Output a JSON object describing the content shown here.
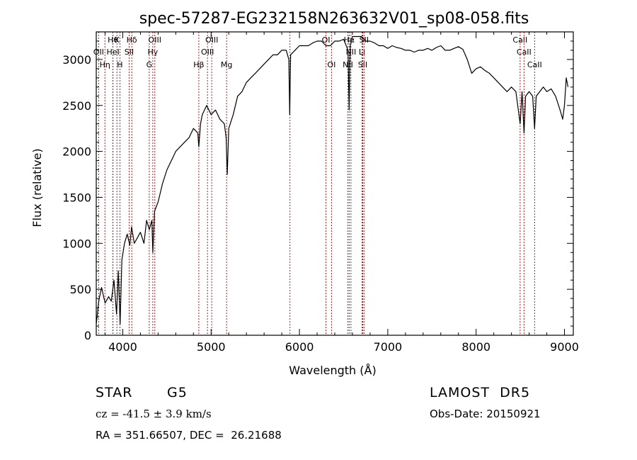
{
  "chart_data": {
    "type": "line",
    "title": "spec-57287-EG232158N263632V01_sp08-058.fits",
    "xlabel": "Wavelength (Å)",
    "ylabel": "Flux (relative)",
    "xlim": [
      3700,
      9100
    ],
    "ylim": [
      0,
      3300
    ],
    "xticks": [
      4000,
      5000,
      6000,
      7000,
      8000,
      9000
    ],
    "yticks": [
      0,
      500,
      1000,
      1500,
      2000,
      2500,
      3000
    ],
    "grid": false,
    "series": [
      {
        "color": "#000000",
        "points": [
          [
            3700,
            120
          ],
          [
            3730,
            380
          ],
          [
            3760,
            520
          ],
          [
            3800,
            350
          ],
          [
            3840,
            420
          ],
          [
            3870,
            370
          ],
          [
            3900,
            600
          ],
          [
            3930,
            230
          ],
          [
            3950,
            700
          ],
          [
            3970,
            120
          ],
          [
            3990,
            820
          ],
          [
            4020,
            1000
          ],
          [
            4050,
            1100
          ],
          [
            4080,
            980
          ],
          [
            4100,
            1180
          ],
          [
            4130,
            1000
          ],
          [
            4160,
            1050
          ],
          [
            4200,
            1120
          ],
          [
            4240,
            1000
          ],
          [
            4270,
            1250
          ],
          [
            4300,
            1150
          ],
          [
            4330,
            1250
          ],
          [
            4340,
            900
          ],
          [
            4360,
            1350
          ],
          [
            4400,
            1450
          ],
          [
            4450,
            1650
          ],
          [
            4500,
            1800
          ],
          [
            4550,
            1900
          ],
          [
            4600,
            2000
          ],
          [
            4650,
            2050
          ],
          [
            4700,
            2100
          ],
          [
            4750,
            2150
          ],
          [
            4800,
            2250
          ],
          [
            4850,
            2200
          ],
          [
            4861,
            2050
          ],
          [
            4880,
            2300
          ],
          [
            4900,
            2400
          ],
          [
            4950,
            2500
          ],
          [
            5000,
            2400
          ],
          [
            5050,
            2450
          ],
          [
            5100,
            2350
          ],
          [
            5150,
            2300
          ],
          [
            5170,
            2150
          ],
          [
            5183,
            1750
          ],
          [
            5200,
            2250
          ],
          [
            5250,
            2400
          ],
          [
            5300,
            2600
          ],
          [
            5350,
            2650
          ],
          [
            5400,
            2750
          ],
          [
            5450,
            2800
          ],
          [
            5500,
            2850
          ],
          [
            5550,
            2900
          ],
          [
            5600,
            2950
          ],
          [
            5650,
            3000
          ],
          [
            5700,
            3050
          ],
          [
            5750,
            3050
          ],
          [
            5800,
            3100
          ],
          [
            5850,
            3100
          ],
          [
            5880,
            3000
          ],
          [
            5890,
            2400
          ],
          [
            5900,
            3050
          ],
          [
            5950,
            3100
          ],
          [
            6000,
            3150
          ],
          [
            6050,
            3150
          ],
          [
            6100,
            3150
          ],
          [
            6150,
            3180
          ],
          [
            6200,
            3200
          ],
          [
            6250,
            3200
          ],
          [
            6300,
            3150
          ],
          [
            6350,
            3150
          ],
          [
            6400,
            3200
          ],
          [
            6450,
            3200
          ],
          [
            6500,
            3220
          ],
          [
            6550,
            3100
          ],
          [
            6563,
            2450
          ],
          [
            6575,
            3150
          ],
          [
            6600,
            3250
          ],
          [
            6650,
            3250
          ],
          [
            6700,
            3250
          ],
          [
            6750,
            3200
          ],
          [
            6800,
            3200
          ],
          [
            6850,
            3180
          ],
          [
            6900,
            3150
          ],
          [
            6950,
            3150
          ],
          [
            7000,
            3120
          ],
          [
            7050,
            3150
          ],
          [
            7100,
            3130
          ],
          [
            7150,
            3120
          ],
          [
            7200,
            3100
          ],
          [
            7250,
            3100
          ],
          [
            7300,
            3080
          ],
          [
            7350,
            3100
          ],
          [
            7400,
            3100
          ],
          [
            7450,
            3120
          ],
          [
            7500,
            3100
          ],
          [
            7550,
            3130
          ],
          [
            7600,
            3150
          ],
          [
            7650,
            3100
          ],
          [
            7700,
            3100
          ],
          [
            7750,
            3120
          ],
          [
            7800,
            3140
          ],
          [
            7850,
            3110
          ],
          [
            7900,
            3000
          ],
          [
            7950,
            2850
          ],
          [
            8000,
            2900
          ],
          [
            8050,
            2920
          ],
          [
            8100,
            2880
          ],
          [
            8150,
            2850
          ],
          [
            8200,
            2800
          ],
          [
            8250,
            2750
          ],
          [
            8300,
            2700
          ],
          [
            8350,
            2650
          ],
          [
            8400,
            2700
          ],
          [
            8450,
            2650
          ],
          [
            8498,
            2300
          ],
          [
            8520,
            2650
          ],
          [
            8542,
            2200
          ],
          [
            8560,
            2600
          ],
          [
            8600,
            2650
          ],
          [
            8640,
            2600
          ],
          [
            8662,
            2250
          ],
          [
            8680,
            2600
          ],
          [
            8720,
            2650
          ],
          [
            8760,
            2700
          ],
          [
            8800,
            2650
          ],
          [
            8850,
            2680
          ],
          [
            8900,
            2600
          ],
          [
            8950,
            2450
          ],
          [
            8980,
            2350
          ],
          [
            9000,
            2500
          ],
          [
            9020,
            2800
          ],
          [
            9040,
            2700
          ]
        ]
      }
    ],
    "line_markers": [
      {
        "wl": 3727,
        "label": "OII",
        "row": 1
      },
      {
        "wl": 3798,
        "label": "Hη",
        "row": 2
      },
      {
        "wl": 3889,
        "label": "Hθ",
        "row": 0
      },
      {
        "wl": 3889,
        "label": "HeI",
        "row": 1
      },
      {
        "wl": 3934,
        "label": "K",
        "row": 0
      },
      {
        "wl": 3968,
        "label": "H",
        "row": 2
      },
      {
        "wl": 4072,
        "label": "SII",
        "row": 1
      },
      {
        "wl": 4102,
        "label": "Hδ",
        "row": 0
      },
      {
        "wl": 4300,
        "label": "G",
        "row": 2
      },
      {
        "wl": 4340,
        "label": "Hγ",
        "row": 1
      },
      {
        "wl": 4363,
        "label": "OIII",
        "row": 0
      },
      {
        "wl": 4861,
        "label": "Hβ",
        "row": 2
      },
      {
        "wl": 4959,
        "label": "OIII",
        "row": 1
      },
      {
        "wl": 5007,
        "label": "OIII",
        "row": 0
      },
      {
        "wl": 5175,
        "label": "Mg",
        "row": 2
      },
      {
        "wl": 5893,
        "label": "",
        "row": 0
      },
      {
        "wl": 6300,
        "label": "OI",
        "row": 0
      },
      {
        "wl": 6363,
        "label": "OI",
        "row": 2
      },
      {
        "wl": 6548,
        "label": "NII",
        "row": 2
      },
      {
        "wl": 6563,
        "label": "Hα",
        "row": 0
      },
      {
        "wl": 6583,
        "label": "NII",
        "row": 1
      },
      {
        "wl": 6708,
        "label": "Li",
        "row": 1
      },
      {
        "wl": 6716,
        "label": "SII",
        "row": 2
      },
      {
        "wl": 6731,
        "label": "SII",
        "row": 0
      },
      {
        "wl": 8498,
        "label": "CaII",
        "row": 0
      },
      {
        "wl": 8542,
        "label": "CaII",
        "row": 1
      },
      {
        "wl": 8662,
        "label": "CaII",
        "row": 2
      }
    ]
  },
  "info": {
    "object_class": "STAR",
    "subclass": "G5",
    "survey": "LAMOST  DR5",
    "redshift": "cz = -41.5 ± 3.9 km/s",
    "obs_date": "Obs-Date: 20150921",
    "coords": "RA = 351.66507, DEC =  26.21688"
  }
}
